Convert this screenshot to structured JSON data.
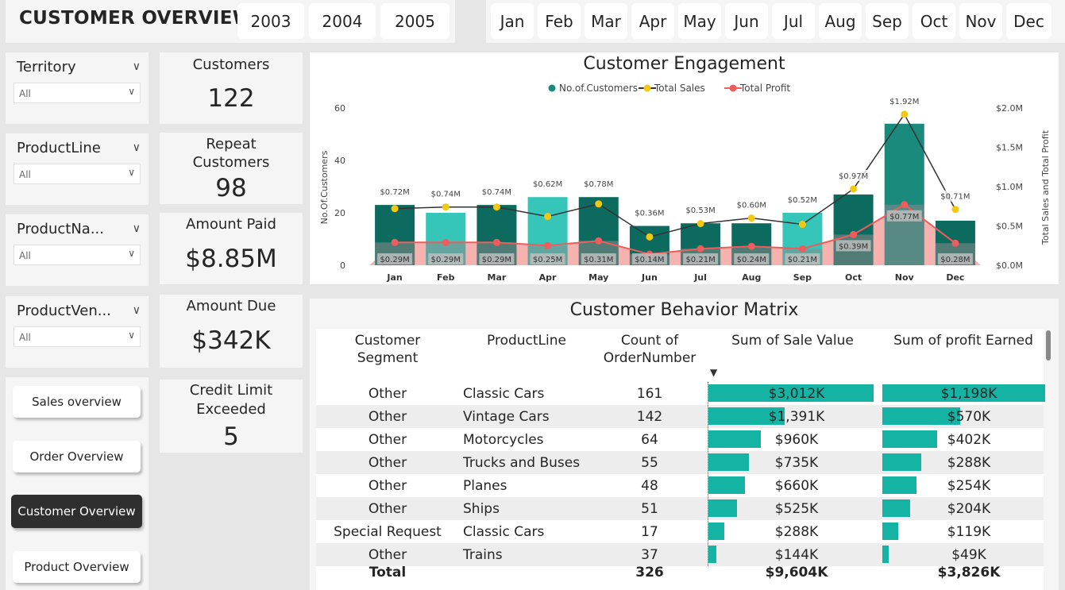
{
  "header": {
    "title": "CUSTOMER OVERVIEW",
    "years": [
      "2003",
      "2004",
      "2005"
    ],
    "months": [
      "Jan",
      "Feb",
      "Mar",
      "Apr",
      "May",
      "Jun",
      "Jul",
      "Aug",
      "Sep",
      "Oct",
      "Nov",
      "Dec"
    ]
  },
  "slicers": [
    {
      "title": "Territory",
      "value": "All"
    },
    {
      "title": "ProductLine",
      "value": "All"
    },
    {
      "title": "ProductNa...",
      "value": "All"
    },
    {
      "title": "ProductVen...",
      "value": "All"
    }
  ],
  "kpis": {
    "customers": {
      "label": "Customers",
      "value": "122"
    },
    "repeat": {
      "label1": "Repeat",
      "label2": "Customers",
      "value": "98"
    },
    "paid": {
      "label": "Amount Paid",
      "value": "$8.85M"
    },
    "due": {
      "label": "Amount Due",
      "value": "$342K"
    },
    "credit": {
      "label1": "Credit Limit",
      "label2": "Exceeded",
      "value": "5"
    }
  },
  "nav": {
    "sales": "Sales overview",
    "order": "Order Overview",
    "customer": "Customer Overview",
    "product": "Product Overview"
  },
  "colors": {
    "teal_dark": "#0c6a5e",
    "teal_light": "#35c5b9",
    "teal_mid": "#1a8a7c",
    "sales_line": "#333333",
    "sales_dot": "#f2c811",
    "profit": "#ef5c5c",
    "profit_area": "#f4aaa5"
  },
  "chart_data": {
    "type": "bar",
    "title": "Customer Engagement",
    "ylabel": "No.Of.Customers",
    "ylabel_right": "Total Sales and Total Profit",
    "ylim": [
      0,
      60
    ],
    "ylim_right": [
      0,
      2.0
    ],
    "yticks": [
      "0",
      "20",
      "40",
      "60"
    ],
    "yticks_right": [
      "$0.0M",
      "$0.5M",
      "$1.0M",
      "$1.5M",
      "$2.0M"
    ],
    "legend": [
      "No.of.Customers",
      "Total Sales",
      "Total Profit"
    ],
    "categories": [
      "Jan",
      "Feb",
      "Mar",
      "Apr",
      "May",
      "Jun",
      "Jul",
      "Aug",
      "Sep",
      "Oct",
      "Nov",
      "Dec"
    ],
    "series": [
      {
        "name": "No.of.Customers",
        "values": [
          23,
          20,
          23,
          26,
          26,
          15,
          16,
          16,
          20,
          27,
          54,
          17
        ]
      },
      {
        "name": "Total Sales",
        "values": [
          0.72,
          0.74,
          0.74,
          0.62,
          0.78,
          0.36,
          0.53,
          0.6,
          0.52,
          0.97,
          1.92,
          0.71
        ],
        "labels": [
          "$0.72M",
          "$0.74M",
          "$0.74M",
          "$0.62M",
          "$0.78M",
          "$0.36M",
          "$0.53M",
          "$0.60M",
          "$0.52M",
          "$0.97M",
          "$1.92M",
          "$0.71M"
        ]
      },
      {
        "name": "Total Profit",
        "values": [
          0.29,
          0.29,
          0.29,
          0.25,
          0.31,
          0.14,
          0.21,
          0.24,
          0.21,
          0.39,
          0.77,
          0.28
        ],
        "labels": [
          "$0.29M",
          "$0.29M",
          "$0.29M",
          "$0.25M",
          "$0.31M",
          "$0.14M",
          "$0.21M",
          "$0.24M",
          "$0.21M",
          "$0.39M",
          "$0.77M",
          "$0.28M"
        ]
      }
    ]
  },
  "matrix": {
    "title": "Customer Behavior Matrix",
    "headers": {
      "segment": "Customer Segment",
      "productline": "ProductLine",
      "count": "Count of OrderNumber",
      "sale": "Sum of Sale Value",
      "profit": "Sum of profit Earned"
    },
    "rows": [
      {
        "segment": "Other",
        "productline": "Classic Cars",
        "count": "161",
        "sale": "$3,012K",
        "sale_v": 3012,
        "profit": "$1,198K",
        "profit_v": 1198
      },
      {
        "segment": "Other",
        "productline": "Vintage Cars",
        "count": "142",
        "sale": "$1,391K",
        "sale_v": 1391,
        "profit": "$570K",
        "profit_v": 570
      },
      {
        "segment": "Other",
        "productline": "Motorcycles",
        "count": "64",
        "sale": "$960K",
        "sale_v": 960,
        "profit": "$402K",
        "profit_v": 402
      },
      {
        "segment": "Other",
        "productline": "Trucks and Buses",
        "count": "55",
        "sale": "$735K",
        "sale_v": 735,
        "profit": "$288K",
        "profit_v": 288
      },
      {
        "segment": "Other",
        "productline": "Planes",
        "count": "48",
        "sale": "$660K",
        "sale_v": 660,
        "profit": "$254K",
        "profit_v": 254
      },
      {
        "segment": "Other",
        "productline": "Ships",
        "count": "51",
        "sale": "$525K",
        "sale_v": 525,
        "profit": "$204K",
        "profit_v": 204
      },
      {
        "segment": "Special Request",
        "productline": "Classic Cars",
        "count": "17",
        "sale": "$288K",
        "sale_v": 288,
        "profit": "$119K",
        "profit_v": 119
      },
      {
        "segment": "Other",
        "productline": "Trains",
        "count": "37",
        "sale": "$144K",
        "sale_v": 144,
        "profit": "$49K",
        "profit_v": 49
      }
    ],
    "total": {
      "label": "Total",
      "count": "326",
      "sale": "$9,604K",
      "profit": "$3,826K"
    }
  }
}
